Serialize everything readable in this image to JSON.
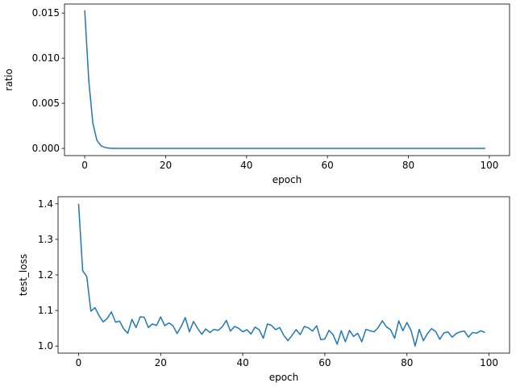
{
  "chart_data": [
    {
      "type": "line",
      "xlabel": "epoch",
      "ylabel": "ratio",
      "xlim": [
        -5,
        105
      ],
      "ylim": [
        -0.0008,
        0.016
      ],
      "xticks": [
        0,
        20,
        40,
        60,
        80,
        100
      ],
      "xtick_labels": [
        "0",
        "20",
        "40",
        "60",
        "80",
        "100"
      ],
      "yticks": [
        0,
        0.005,
        0.01,
        0.015
      ],
      "ytick_labels": [
        "0.000",
        "0.005",
        "0.010",
        "0.015"
      ],
      "grid": false,
      "color": "#1f77b4",
      "series": [
        {
          "x": [
            0,
            1,
            2,
            3,
            4,
            5,
            6,
            7,
            8,
            9,
            10,
            11,
            12,
            13,
            14,
            15,
            16,
            17,
            18,
            19,
            20,
            21,
            22,
            23,
            24,
            25,
            26,
            27,
            28,
            29,
            30,
            31,
            32,
            33,
            34,
            35,
            36,
            37,
            38,
            39,
            40,
            41,
            42,
            43,
            44,
            45,
            46,
            47,
            48,
            49,
            50,
            51,
            52,
            53,
            54,
            55,
            56,
            57,
            58,
            59,
            60,
            61,
            62,
            63,
            64,
            65,
            66,
            67,
            68,
            69,
            70,
            71,
            72,
            73,
            74,
            75,
            76,
            77,
            78,
            79,
            80,
            81,
            82,
            83,
            84,
            85,
            86,
            87,
            88,
            89,
            90,
            91,
            92,
            93,
            94,
            95,
            96,
            97,
            98,
            99
          ],
          "y": [
            0.0153,
            0.0075,
            0.0028,
            0.0009,
            0.0003,
            0.0001,
            3e-05,
            1e-05,
            0,
            0,
            0,
            0,
            0,
            0,
            0,
            0,
            0,
            0,
            0,
            0,
            0,
            0,
            0,
            0,
            0,
            0,
            0,
            0,
            0,
            0,
            0,
            0,
            0,
            0,
            0,
            0,
            0,
            0,
            0,
            0,
            0,
            0,
            0,
            0,
            0,
            0,
            0,
            0,
            0,
            0,
            0,
            0,
            0,
            0,
            0,
            0,
            0,
            0,
            0,
            0,
            0,
            0,
            0,
            0,
            0,
            0,
            0,
            0,
            0,
            0,
            0,
            0,
            0,
            0,
            0,
            0,
            0,
            0,
            0,
            0,
            0,
            0,
            0,
            0,
            0,
            0,
            0,
            0,
            0,
            0,
            0,
            0,
            0,
            0,
            0,
            0,
            0,
            0,
            0,
            0
          ]
        }
      ]
    },
    {
      "type": "line",
      "xlabel": "epoch",
      "ylabel": "test_loss",
      "xlim": [
        -5,
        105
      ],
      "ylim": [
        0.98,
        1.42
      ],
      "xticks": [
        0,
        20,
        40,
        60,
        80,
        100
      ],
      "xtick_labels": [
        "0",
        "20",
        "40",
        "60",
        "80",
        "100"
      ],
      "yticks": [
        1.0,
        1.1,
        1.2,
        1.3,
        1.4
      ],
      "ytick_labels": [
        "1.0",
        "1.1",
        "1.2",
        "1.3",
        "1.4"
      ],
      "grid": false,
      "color": "#1f77b4",
      "series": [
        {
          "x": [
            0,
            1,
            2,
            3,
            4,
            5,
            6,
            7,
            8,
            9,
            10,
            11,
            12,
            13,
            14,
            15,
            16,
            17,
            18,
            19,
            20,
            21,
            22,
            23,
            24,
            25,
            26,
            27,
            28,
            29,
            30,
            31,
            32,
            33,
            34,
            35,
            36,
            37,
            38,
            39,
            40,
            41,
            42,
            43,
            44,
            45,
            46,
            47,
            48,
            49,
            50,
            51,
            52,
            53,
            54,
            55,
            56,
            57,
            58,
            59,
            60,
            61,
            62,
            63,
            64,
            65,
            66,
            67,
            68,
            69,
            70,
            71,
            72,
            73,
            74,
            75,
            76,
            77,
            78,
            79,
            80,
            81,
            82,
            83,
            84,
            85,
            86,
            87,
            88,
            89,
            90,
            91,
            92,
            93,
            94,
            95,
            96,
            97,
            98,
            99
          ],
          "y": [
            1.4,
            1.212,
            1.195,
            1.098,
            1.108,
            1.085,
            1.068,
            1.078,
            1.096,
            1.067,
            1.07,
            1.048,
            1.036,
            1.075,
            1.052,
            1.082,
            1.081,
            1.052,
            1.062,
            1.058,
            1.082,
            1.057,
            1.065,
            1.057,
            1.035,
            1.055,
            1.08,
            1.04,
            1.069,
            1.05,
            1.033,
            1.048,
            1.038,
            1.047,
            1.044,
            1.054,
            1.072,
            1.042,
            1.055,
            1.05,
            1.04,
            1.046,
            1.034,
            1.053,
            1.046,
            1.022,
            1.062,
            1.058,
            1.046,
            1.052,
            1.03,
            1.015,
            1.03,
            1.046,
            1.032,
            1.055,
            1.051,
            1.042,
            1.057,
            1.018,
            1.02,
            1.044,
            1.032,
            1.005,
            1.043,
            1.012,
            1.044,
            1.027,
            1.036,
            1.012,
            1.047,
            1.043,
            1.04,
            1.052,
            1.071,
            1.054,
            1.046,
            1.022,
            1.071,
            1.043,
            1.066,
            1.044,
            1.0,
            1.047,
            1.015,
            1.035,
            1.049,
            1.041,
            1.019,
            1.037,
            1.04,
            1.025,
            1.035,
            1.04,
            1.042,
            1.025,
            1.038,
            1.036,
            1.043,
            1.038
          ]
        }
      ]
    }
  ]
}
